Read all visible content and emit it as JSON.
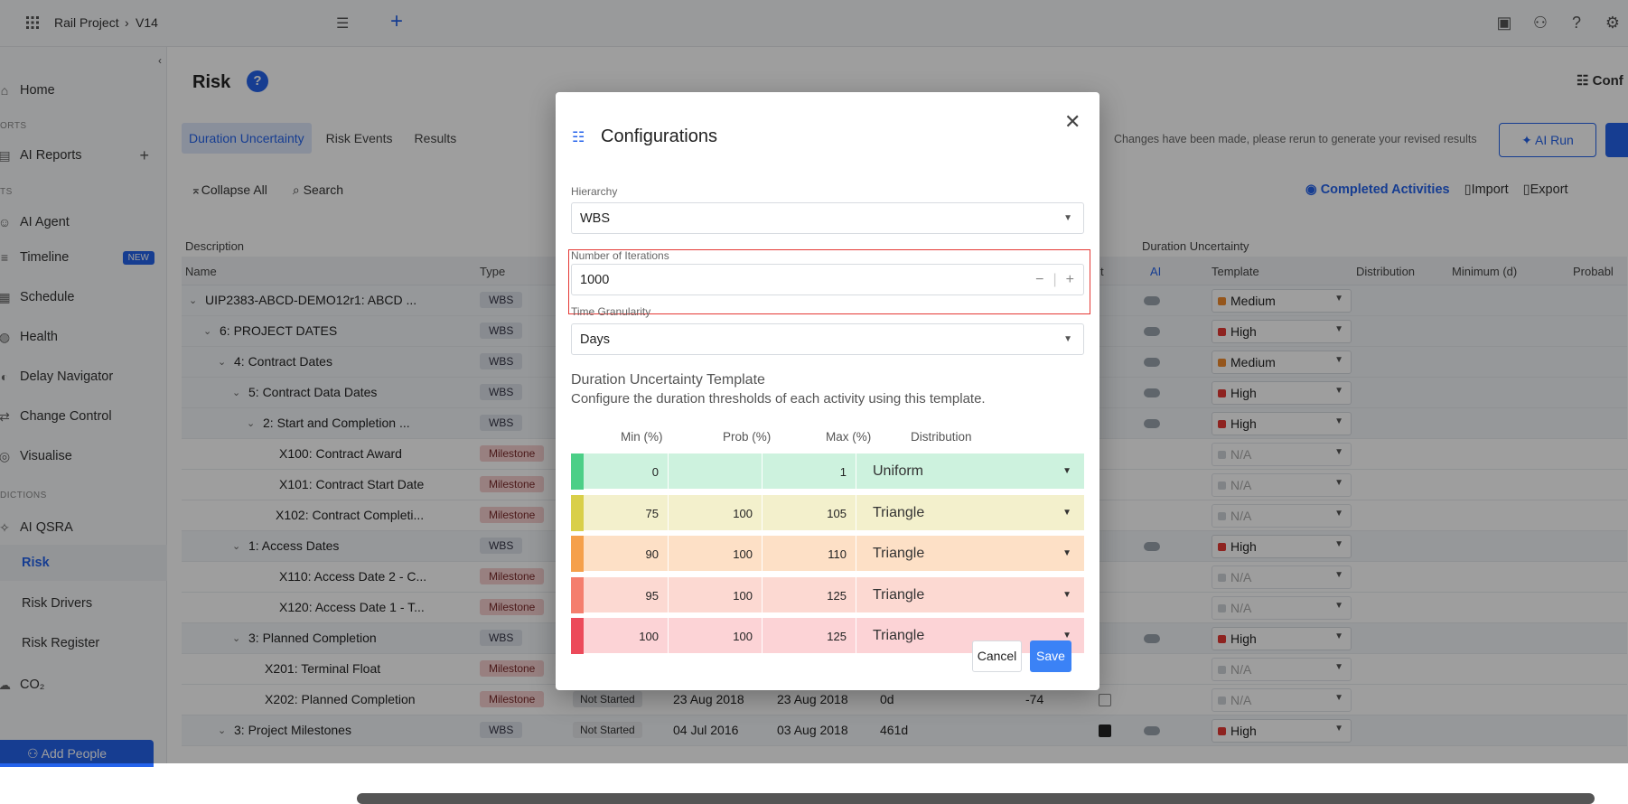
{
  "topbar": {
    "project": "Rail Project",
    "version": "V14"
  },
  "sidebar": {
    "items": [
      {
        "label": "Home",
        "icon": "home-icon"
      },
      {
        "section": "ORTS"
      },
      {
        "label": "AI Reports",
        "icon": "report-icon"
      },
      {
        "section": "TS"
      },
      {
        "label": "AI Agent",
        "icon": "agent-icon"
      },
      {
        "label": "Timeline",
        "icon": "timeline-icon",
        "badge": "NEW"
      },
      {
        "label": "Schedule",
        "icon": "schedule-icon"
      },
      {
        "label": "Health",
        "icon": "health-icon"
      },
      {
        "label": "Delay Navigator",
        "icon": "navigator-icon"
      },
      {
        "label": "Change Control",
        "icon": "change-icon"
      },
      {
        "label": "Visualise",
        "icon": "visualise-icon"
      },
      {
        "section": "DICTIONS"
      },
      {
        "label": "AI QSRA",
        "icon": "qsra-icon"
      },
      {
        "label": "Risk",
        "icon": ""
      },
      {
        "label": "Risk Drivers",
        "icon": ""
      },
      {
        "label": "Risk Register",
        "icon": ""
      },
      {
        "label": "CO₂",
        "icon": "co2-icon"
      }
    ],
    "add_people": "Add People"
  },
  "main": {
    "title": "Risk",
    "config_link": "Conf",
    "tabs": [
      "Duration Uncertainty",
      "Risk Events",
      "Results"
    ],
    "changes_msg": "Changes have been made, please rerun to generate your revised results",
    "ai_run": "AI Run",
    "collapse_all": "Collapse All",
    "search": "Search",
    "completed_activities": "Completed Activities",
    "import": "Import",
    "export": "Export",
    "hdr": {
      "description": "Description",
      "duration_uncertainty": "Duration Uncertainty",
      "name": "Name",
      "type": "Type",
      "t": "t",
      "ai": "AI",
      "template": "Template",
      "distribution": "Distribution",
      "minimum": "Minimum (d)",
      "probable": "Probabl"
    }
  },
  "rows": [
    {
      "name": "UIP2383-ABCD-DEMO12r1: ABCD ...",
      "type": "WBS",
      "template": "Medium",
      "color": "#f08c2e"
    },
    {
      "name": "6: PROJECT DATES",
      "type": "WBS",
      "template": "High",
      "color": "#e53935"
    },
    {
      "name": "4: Contract Dates",
      "type": "WBS",
      "template": "Medium",
      "color": "#f08c2e"
    },
    {
      "name": "5: Contract Data Dates",
      "type": "WBS",
      "template": "High",
      "color": "#e53935"
    },
    {
      "name": "2: Start and Completion ...",
      "type": "WBS",
      "template": "High",
      "color": "#e53935"
    },
    {
      "name": "X100: Contract Award",
      "type": "Milestone",
      "template": "N/A",
      "color": "#cfd3d8"
    },
    {
      "name": "X101: Contract Start Date",
      "type": "Milestone",
      "template": "N/A",
      "color": "#cfd3d8"
    },
    {
      "name": "X102: Contract Completi...",
      "type": "Milestone",
      "template": "N/A",
      "color": "#cfd3d8"
    },
    {
      "name": "1: Access Dates",
      "type": "WBS",
      "template": "High",
      "color": "#e53935"
    },
    {
      "name": "X110: Access Date 2 - C...",
      "type": "Milestone",
      "template": "N/A",
      "color": "#cfd3d8"
    },
    {
      "name": "X120: Access Date 1 - T...",
      "type": "Milestone",
      "template": "N/A",
      "color": "#cfd3d8"
    },
    {
      "name": "3: Planned Completion",
      "type": "WBS",
      "template": "High",
      "color": "#e53935"
    },
    {
      "name": "X201: Terminal Float",
      "type": "Milestone",
      "template": "N/A",
      "color": "#cfd3d8"
    },
    {
      "name": "X202: Planned Completion",
      "type": "Milestone",
      "status": "Not Started",
      "start": "23 Aug 2018",
      "finish": "23 Aug 2018",
      "duration": "0d",
      "float": "-74",
      "template": "N/A",
      "color": "#cfd3d8"
    },
    {
      "name": "3: Project Milestones",
      "type": "WBS",
      "status": "Not Started",
      "start": "04 Jul 2016",
      "finish": "03 Aug 2018",
      "duration": "461d",
      "template": "High",
      "color": "#e53935"
    }
  ],
  "modal": {
    "title": "Configurations",
    "hierarchy_label": "Hierarchy",
    "hierarchy_value": "WBS",
    "iterations_label": "Number of Iterations",
    "iterations_value": "1000",
    "granularity_label": "Time Granularity",
    "granularity_value": "Days",
    "template_title": "Duration Uncertainty Template",
    "template_desc": "Configure the duration thresholds of each activity using this template.",
    "cols": {
      "min": "Min (%)",
      "prob": "Prob (%)",
      "max": "Max (%)",
      "dist": "Distribution"
    },
    "template_rows": [
      {
        "min": "0",
        "prob": "",
        "max": "1",
        "dist": "Uniform",
        "strip": "#4ccf87",
        "bg": "#cdf2de"
      },
      {
        "min": "75",
        "prob": "100",
        "max": "105",
        "dist": "Triangle",
        "strip": "#d9cf49",
        "bg": "#f3f0cc"
      },
      {
        "min": "90",
        "prob": "100",
        "max": "110",
        "dist": "Triangle",
        "strip": "#f5a04b",
        "bg": "#fde0c6"
      },
      {
        "min": "95",
        "prob": "100",
        "max": "125",
        "dist": "Triangle",
        "strip": "#f47e6d",
        "bg": "#fcd9d2"
      },
      {
        "min": "100",
        "prob": "100",
        "max": "125",
        "dist": "Triangle",
        "strip": "#ec4a5a",
        "bg": "#fcd3d6"
      }
    ],
    "cancel": "Cancel",
    "save": "Save"
  }
}
